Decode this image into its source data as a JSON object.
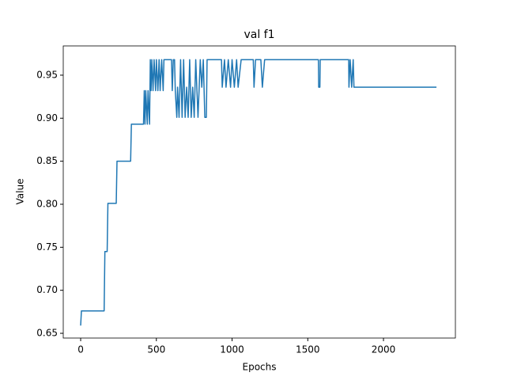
{
  "chart_data": {
    "type": "line",
    "title": "val f1",
    "x_label": "Epochs",
    "y_label": "Value",
    "series": [
      {
        "color": "#1f77b4",
        "x": [
          0,
          5,
          155,
          160,
          175,
          180,
          235,
          240,
          330,
          335,
          415,
          420,
          425,
          430,
          440,
          445,
          455,
          460,
          465,
          470,
          478,
          485,
          495,
          500,
          510,
          518,
          525,
          535,
          545,
          550,
          600,
          605,
          612,
          620,
          625,
          635,
          640,
          650,
          660,
          670,
          680,
          690,
          700,
          710,
          720,
          730,
          740,
          750,
          760,
          775,
          790,
          800,
          810,
          820,
          830,
          835,
          930,
          935,
          950,
          960,
          975,
          990,
          1000,
          1015,
          1030,
          1040,
          1060,
          1140,
          1145,
          1155,
          1190,
          1200,
          1215,
          1570,
          1572,
          1580,
          1582,
          1770,
          1772,
          1780,
          1790,
          1800,
          1805,
          2350
        ],
        "values": [
          0.659,
          0.676,
          0.676,
          0.745,
          0.745,
          0.801,
          0.801,
          0.85,
          0.85,
          0.893,
          0.893,
          0.932,
          0.893,
          0.932,
          0.893,
          0.932,
          0.893,
          0.968,
          0.932,
          0.968,
          0.932,
          0.968,
          0.932,
          0.968,
          0.932,
          0.968,
          0.932,
          0.968,
          0.932,
          0.968,
          0.968,
          0.932,
          0.968,
          0.968,
          0.932,
          0.901,
          0.936,
          0.901,
          0.968,
          0.901,
          0.968,
          0.901,
          0.936,
          0.901,
          0.968,
          0.901,
          0.936,
          0.901,
          0.968,
          0.901,
          0.968,
          0.936,
          0.968,
          0.901,
          0.901,
          0.968,
          0.968,
          0.936,
          0.968,
          0.936,
          0.968,
          0.936,
          0.968,
          0.936,
          0.968,
          0.936,
          0.968,
          0.968,
          0.936,
          0.968,
          0.968,
          0.936,
          0.968,
          0.968,
          0.936,
          0.936,
          0.968,
          0.968,
          0.936,
          0.968,
          0.936,
          0.968,
          0.936,
          0.936
        ]
      }
    ],
    "xlim": [
      -115,
      2475
    ],
    "ylim": [
      0.6445,
      0.984
    ],
    "xticks": [
      0,
      500,
      1000,
      1500,
      2000
    ],
    "yticks": [
      0.65,
      {
        "value": 0.7,
        "label": "0.70"
      },
      0.75,
      {
        "value": 0.8,
        "label": "0.80"
      },
      0.85,
      {
        "value": 0.9,
        "label": "0.90"
      },
      0.95
    ]
  }
}
